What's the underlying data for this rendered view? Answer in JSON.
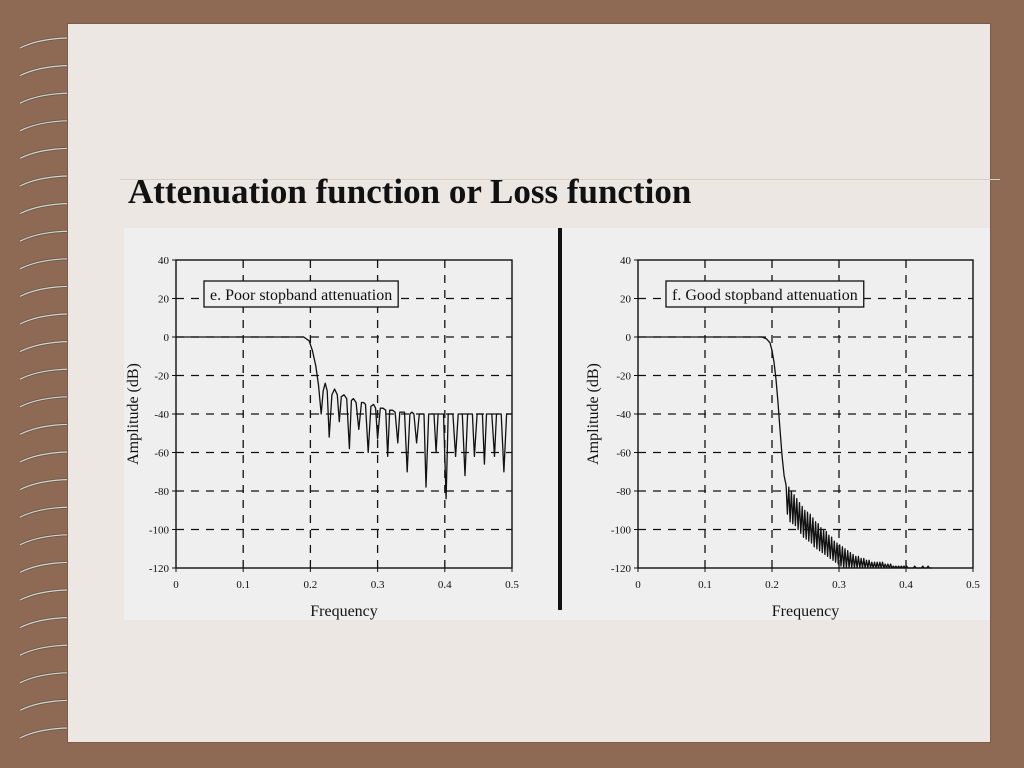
{
  "slide": {
    "title": "Attenuation function or Loss function"
  },
  "colors": {
    "background": "#8e6a55",
    "slide": "#ece7e3",
    "figure_panel": "#efefef",
    "ink": "#111111"
  },
  "decor": {
    "binding": "spiral-binding-rings"
  },
  "chart_data": [
    {
      "type": "line",
      "annotation": "e. Poor stopband attenuation",
      "xlabel": "Frequency",
      "ylabel": "Amplitude (dB)",
      "xlim": [
        0,
        0.5
      ],
      "ylim": [
        -120,
        40
      ],
      "xticks": [
        "0",
        "0.1",
        "0.2",
        "0.3",
        "0.4",
        "0.5"
      ],
      "yticks": [
        "40",
        "20",
        "0",
        "-20",
        "-40",
        "-60",
        "-80",
        "-100",
        "-120"
      ],
      "grid": "dashed",
      "series": [
        {
          "values_description_free": true,
          "x": [
            0,
            0.19,
            0.198,
            0.203,
            0.208,
            0.212,
            0.216,
            0.219,
            0.222,
            0.225,
            0.228,
            0.232,
            0.236,
            0.24,
            0.243,
            0.246,
            0.25,
            0.254,
            0.258,
            0.261,
            0.264,
            0.268,
            0.272,
            0.276,
            0.279,
            0.282,
            0.286,
            0.29,
            0.294,
            0.297,
            0.3,
            0.304,
            0.308,
            0.312,
            0.315,
            0.318,
            0.322,
            0.326,
            0.33,
            0.333,
            0.336,
            0.34,
            0.344,
            0.348,
            0.351,
            0.354,
            0.358,
            0.362,
            0.366,
            0.369,
            0.372,
            0.376,
            0.38,
            0.384,
            0.387,
            0.39,
            0.394,
            0.398,
            0.402,
            0.405,
            0.408,
            0.412,
            0.416,
            0.42,
            0.423,
            0.426,
            0.43,
            0.434,
            0.438,
            0.441,
            0.444,
            0.448,
            0.452,
            0.456,
            0.459,
            0.462,
            0.466,
            0.47,
            0.474,
            0.477,
            0.48,
            0.484,
            0.488,
            0.492,
            0.495,
            0.498,
            0.5
          ],
          "y": [
            0,
            0,
            -2,
            -7,
            -15,
            -25,
            -40,
            -28,
            -24,
            -28,
            -52,
            -30,
            -27,
            -30,
            -44,
            -31,
            -30,
            -32,
            -58,
            -33,
            -32,
            -34,
            -48,
            -34,
            -34,
            -35,
            -60,
            -36,
            -35,
            -37,
            -53,
            -37,
            -37,
            -38,
            -62,
            -38,
            -38,
            -39,
            -55,
            -39,
            -39,
            -39,
            -70,
            -40,
            -39,
            -40,
            -55,
            -40,
            -40,
            -40,
            -78,
            -40,
            -40,
            -40,
            -60,
            -40,
            -40,
            -40,
            -84,
            -40,
            -40,
            -40,
            -62,
            -40,
            -40,
            -40,
            -72,
            -40,
            -40,
            -40,
            -62,
            -40,
            -40,
            -40,
            -66,
            -40,
            -40,
            -40,
            -62,
            -40,
            -40,
            -40,
            -70,
            -40,
            -40,
            -40,
            -40
          ]
        }
      ]
    },
    {
      "type": "line",
      "annotation": "f.  Good stopband attenuation",
      "xlabel": "Frequency",
      "ylabel": "Amplitude (dB)",
      "xlim": [
        0,
        0.5
      ],
      "ylim": [
        -120,
        40
      ],
      "xticks": [
        "0",
        "0.1",
        "0.2",
        "0.3",
        "0.4",
        "0.5"
      ],
      "yticks": [
        "40",
        "20",
        "0",
        "-20",
        "-40",
        "-60",
        "-80",
        "-100",
        "-120"
      ],
      "grid": "dashed",
      "series": [
        {
          "x": [
            0,
            0.185,
            0.192,
            0.197,
            0.2,
            0.203,
            0.206,
            0.209,
            0.212,
            0.215,
            0.218,
            0.221,
            0.223,
            0.225,
            0.227,
            0.229,
            0.231,
            0.233,
            0.235,
            0.237,
            0.239,
            0.241,
            0.243,
            0.245,
            0.247,
            0.249,
            0.251,
            0.253,
            0.255,
            0.257,
            0.259,
            0.261,
            0.263,
            0.265,
            0.267,
            0.269,
            0.271,
            0.273,
            0.275,
            0.277,
            0.279,
            0.281,
            0.283,
            0.285,
            0.287,
            0.289,
            0.291,
            0.293,
            0.295,
            0.297,
            0.299,
            0.301,
            0.303,
            0.305,
            0.307,
            0.309,
            0.311,
            0.313,
            0.315,
            0.317,
            0.319,
            0.321,
            0.323,
            0.325,
            0.327,
            0.329,
            0.331,
            0.333,
            0.335,
            0.337,
            0.339,
            0.341,
            0.343,
            0.345,
            0.347,
            0.349,
            0.351,
            0.353,
            0.355,
            0.357,
            0.359,
            0.361,
            0.363,
            0.365,
            0.367,
            0.369,
            0.371,
            0.373,
            0.375,
            0.377,
            0.379,
            0.381,
            0.383,
            0.385,
            0.387,
            0.389,
            0.391,
            0.393,
            0.395,
            0.397,
            0.399,
            0.401,
            0.403,
            0.405,
            0.407,
            0.409,
            0.411,
            0.413,
            0.415,
            0.417,
            0.419,
            0.421,
            0.423,
            0.425,
            0.427,
            0.429,
            0.431,
            0.433,
            0.435,
            0.437,
            0.439
          ],
          "y": [
            0,
            0,
            -1,
            -3,
            -7,
            -13,
            -22,
            -34,
            -48,
            -62,
            -72,
            -77,
            -92,
            -78,
            -96,
            -80,
            -97,
            -82,
            -98,
            -84,
            -100,
            -86,
            -102,
            -88,
            -104,
            -90,
            -105,
            -91,
            -106,
            -92,
            -107,
            -94,
            -109,
            -96,
            -110,
            -97,
            -111,
            -99,
            -112,
            -100,
            -113,
            -101,
            -114,
            -103,
            -115,
            -104,
            -116,
            -106,
            -117,
            -107,
            -118,
            -108,
            -119,
            -109,
            -120,
            -110,
            -120,
            -111,
            -120,
            -112,
            -120,
            -113,
            -120,
            -114,
            -120,
            -114,
            -120,
            -115,
            -120,
            -115,
            -120,
            -116,
            -120,
            -116,
            -120,
            -117,
            -120,
            -117,
            -120,
            -117,
            -120,
            -117,
            -120,
            -117,
            -120,
            -118,
            -120,
            -118,
            -120,
            -118,
            -120,
            -119,
            -120,
            -119,
            -120,
            -119,
            -120,
            -119,
            -120,
            -119,
            -120,
            -119,
            -120,
            -120,
            -120,
            -120,
            -120,
            -119,
            -120,
            -120,
            -120,
            -120,
            -120,
            -119,
            -120,
            -120,
            -120,
            -119,
            -120,
            -120,
            -120
          ]
        }
      ]
    }
  ]
}
